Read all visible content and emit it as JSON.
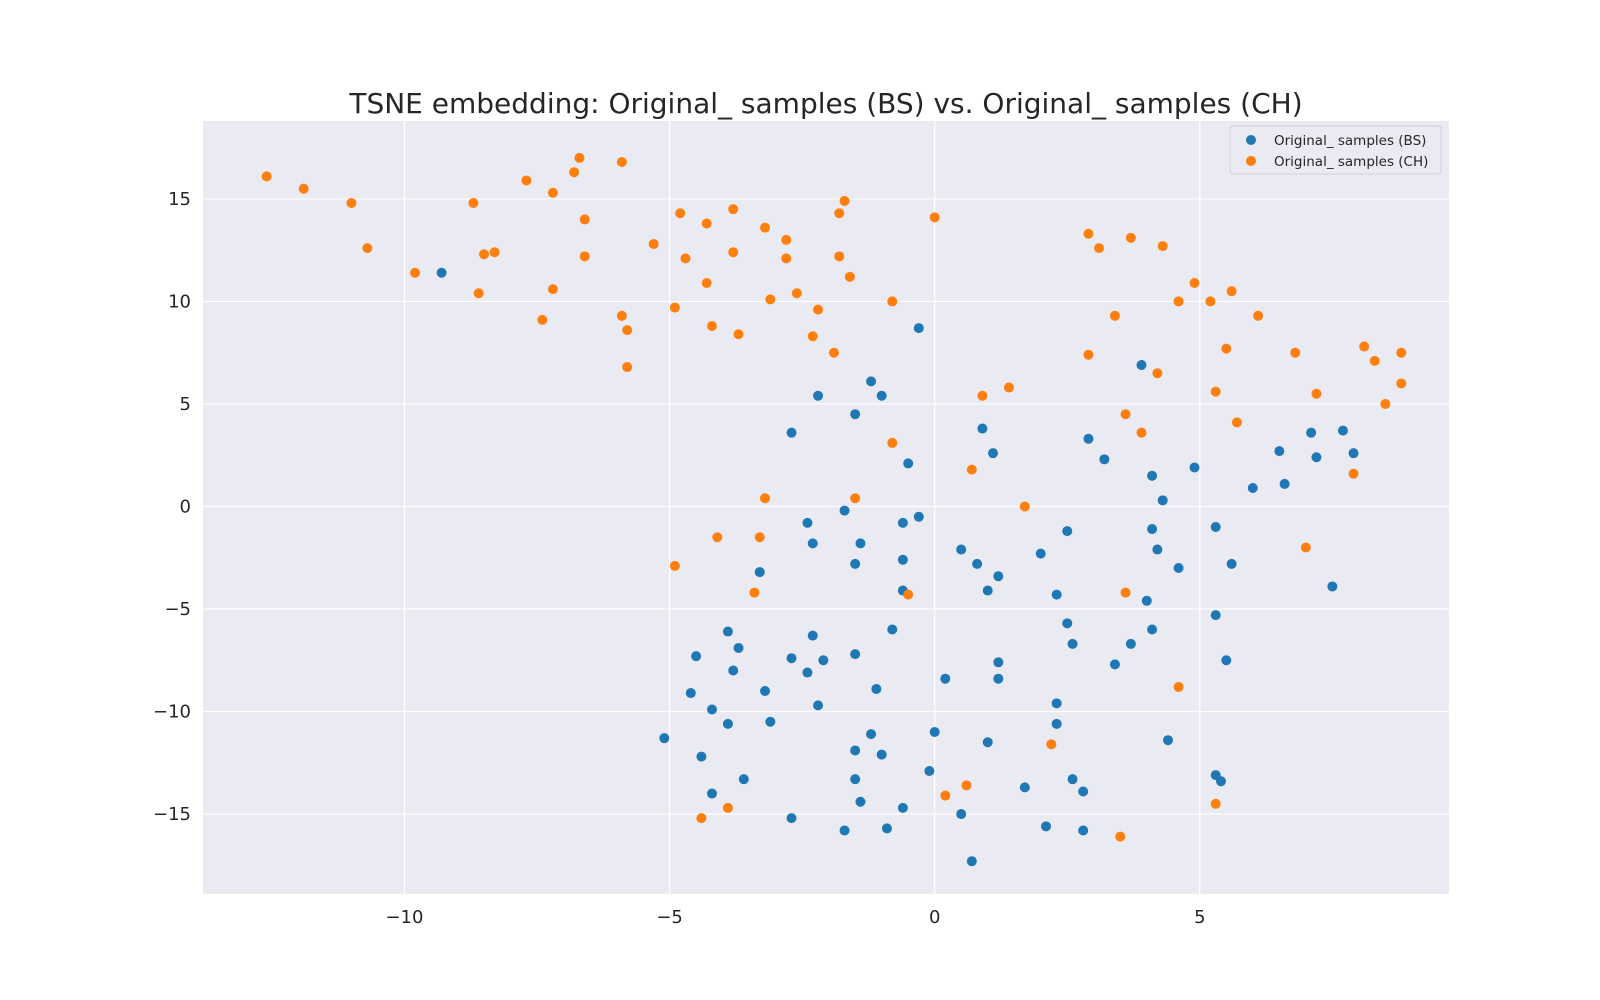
{
  "chart_data": {
    "type": "scatter",
    "title": "TSNE embedding: Original_ samples (BS) vs. Original_ samples (CH)",
    "xlabel": "",
    "ylabel": "",
    "xlim": [
      -13.8,
      9.7
    ],
    "ylim": [
      -18.9,
      18.8
    ],
    "xticks": [
      -10,
      -5,
      0,
      5
    ],
    "yticks": [
      -15,
      -10,
      -5,
      0,
      5,
      10,
      15
    ],
    "xtick_labels": [
      "−10",
      "−5",
      "0",
      "5"
    ],
    "ytick_labels": [
      "−15",
      "−10",
      "−5",
      "0",
      "5",
      "10",
      "15"
    ],
    "grid": true,
    "legend_position": "top-right",
    "series": [
      {
        "name": "Original_ samples (BS)",
        "color": "#1f77b4",
        "points": [
          [
            -9.3,
            11.4
          ],
          [
            -0.3,
            8.7
          ],
          [
            3.9,
            6.9
          ],
          [
            -1.2,
            6.1
          ],
          [
            -2.2,
            5.4
          ],
          [
            -1.0,
            5.4
          ],
          [
            -1.5,
            4.5
          ],
          [
            -2.7,
            3.6
          ],
          [
            0.9,
            3.8
          ],
          [
            1.1,
            2.6
          ],
          [
            -0.5,
            2.1
          ],
          [
            2.9,
            3.3
          ],
          [
            3.2,
            2.3
          ],
          [
            4.1,
            1.5
          ],
          [
            4.9,
            1.9
          ],
          [
            6.5,
            2.7
          ],
          [
            7.1,
            3.6
          ],
          [
            7.7,
            3.7
          ],
          [
            7.9,
            2.6
          ],
          [
            7.2,
            2.4
          ],
          [
            6.0,
            0.9
          ],
          [
            6.6,
            1.1
          ],
          [
            4.3,
            0.3
          ],
          [
            -1.7,
            -0.2
          ],
          [
            -2.4,
            -0.8
          ],
          [
            -0.6,
            -0.8
          ],
          [
            -0.3,
            -0.5
          ],
          [
            -2.3,
            -1.8
          ],
          [
            -1.4,
            -1.8
          ],
          [
            -1.5,
            -2.8
          ],
          [
            -0.6,
            -2.6
          ],
          [
            0.5,
            -2.1
          ],
          [
            0.8,
            -2.8
          ],
          [
            1.2,
            -3.4
          ],
          [
            2.0,
            -2.3
          ],
          [
            2.5,
            -1.2
          ],
          [
            4.1,
            -1.1
          ],
          [
            4.2,
            -2.1
          ],
          [
            4.6,
            -3.0
          ],
          [
            5.3,
            -1.0
          ],
          [
            5.6,
            -2.8
          ],
          [
            -3.3,
            -3.2
          ],
          [
            -0.6,
            -4.1
          ],
          [
            1.0,
            -4.1
          ],
          [
            2.3,
            -4.3
          ],
          [
            4.0,
            -4.6
          ],
          [
            7.5,
            -3.9
          ],
          [
            5.3,
            -5.3
          ],
          [
            -3.9,
            -6.1
          ],
          [
            -2.3,
            -6.3
          ],
          [
            -0.8,
            -6.0
          ],
          [
            2.5,
            -5.7
          ],
          [
            4.1,
            -6.0
          ],
          [
            -4.5,
            -7.3
          ],
          [
            -3.7,
            -6.9
          ],
          [
            -2.7,
            -7.4
          ],
          [
            -1.5,
            -7.2
          ],
          [
            -2.1,
            -7.5
          ],
          [
            -3.8,
            -8.0
          ],
          [
            -2.4,
            -8.1
          ],
          [
            1.2,
            -7.6
          ],
          [
            2.6,
            -6.7
          ],
          [
            3.7,
            -6.7
          ],
          [
            3.4,
            -7.7
          ],
          [
            5.5,
            -7.5
          ],
          [
            -4.6,
            -9.1
          ],
          [
            -3.2,
            -9.0
          ],
          [
            -1.1,
            -8.9
          ],
          [
            0.2,
            -8.4
          ],
          [
            1.2,
            -8.4
          ],
          [
            -4.2,
            -9.9
          ],
          [
            -2.2,
            -9.7
          ],
          [
            2.3,
            -9.6
          ],
          [
            -3.9,
            -10.6
          ],
          [
            -3.1,
            -10.5
          ],
          [
            2.3,
            -10.6
          ],
          [
            -5.1,
            -11.3
          ],
          [
            -1.2,
            -11.1
          ],
          [
            0.0,
            -11.0
          ],
          [
            1.0,
            -11.5
          ],
          [
            4.4,
            -11.4
          ],
          [
            -4.4,
            -12.2
          ],
          [
            -1.5,
            -11.9
          ],
          [
            -1.0,
            -12.1
          ],
          [
            -0.1,
            -12.9
          ],
          [
            -3.6,
            -13.3
          ],
          [
            -1.5,
            -13.3
          ],
          [
            2.6,
            -13.3
          ],
          [
            5.3,
            -13.1
          ],
          [
            5.4,
            -13.4
          ],
          [
            -4.2,
            -14.0
          ],
          [
            -1.4,
            -14.4
          ],
          [
            -0.6,
            -14.7
          ],
          [
            1.7,
            -13.7
          ],
          [
            2.8,
            -13.9
          ],
          [
            -2.7,
            -15.2
          ],
          [
            0.5,
            -15.0
          ],
          [
            -1.7,
            -15.8
          ],
          [
            -0.9,
            -15.7
          ],
          [
            2.1,
            -15.6
          ],
          [
            2.8,
            -15.8
          ],
          [
            0.7,
            -17.3
          ]
        ]
      },
      {
        "name": "Original_ samples (CH)",
        "color": "#ff7f0e",
        "points": [
          [
            -12.6,
            16.1
          ],
          [
            -11.9,
            15.5
          ],
          [
            -11.0,
            14.8
          ],
          [
            -10.7,
            12.6
          ],
          [
            -9.8,
            11.4
          ],
          [
            -8.7,
            14.8
          ],
          [
            -8.5,
            12.3
          ],
          [
            -8.3,
            12.4
          ],
          [
            -8.6,
            10.4
          ],
          [
            -7.7,
            15.9
          ],
          [
            -7.2,
            15.3
          ],
          [
            -6.8,
            16.3
          ],
          [
            -6.7,
            17.0
          ],
          [
            -5.9,
            16.8
          ],
          [
            -6.6,
            14.0
          ],
          [
            -6.6,
            12.2
          ],
          [
            -7.2,
            10.6
          ],
          [
            -7.4,
            9.1
          ],
          [
            -5.9,
            9.3
          ],
          [
            -5.8,
            8.6
          ],
          [
            -5.8,
            6.8
          ],
          [
            -5.3,
            12.8
          ],
          [
            -4.8,
            14.3
          ],
          [
            -4.7,
            12.1
          ],
          [
            -4.9,
            9.7
          ],
          [
            -4.3,
            13.8
          ],
          [
            -3.8,
            14.5
          ],
          [
            -3.8,
            12.4
          ],
          [
            -4.3,
            10.9
          ],
          [
            -4.2,
            8.8
          ],
          [
            -3.7,
            8.4
          ],
          [
            -3.2,
            13.6
          ],
          [
            -2.8,
            13.0
          ],
          [
            -2.8,
            12.1
          ],
          [
            -3.1,
            10.1
          ],
          [
            -2.6,
            10.4
          ],
          [
            -2.2,
            9.6
          ],
          [
            -2.3,
            8.3
          ],
          [
            -1.9,
            7.5
          ],
          [
            -1.8,
            14.3
          ],
          [
            -1.7,
            14.9
          ],
          [
            -1.8,
            12.2
          ],
          [
            -1.6,
            11.2
          ],
          [
            -0.8,
            10.0
          ],
          [
            0.0,
            14.1
          ],
          [
            2.9,
            13.3
          ],
          [
            3.1,
            12.6
          ],
          [
            3.7,
            13.1
          ],
          [
            4.3,
            12.7
          ],
          [
            3.4,
            9.3
          ],
          [
            4.9,
            10.9
          ],
          [
            4.6,
            10.0
          ],
          [
            5.2,
            10.0
          ],
          [
            5.6,
            10.5
          ],
          [
            6.1,
            9.3
          ],
          [
            2.9,
            7.4
          ],
          [
            4.2,
            6.5
          ],
          [
            5.5,
            7.7
          ],
          [
            6.8,
            7.5
          ],
          [
            8.1,
            7.8
          ],
          [
            8.3,
            7.1
          ],
          [
            8.8,
            7.5
          ],
          [
            1.4,
            5.8
          ],
          [
            0.9,
            5.4
          ],
          [
            5.3,
            5.6
          ],
          [
            7.2,
            5.5
          ],
          [
            8.8,
            6.0
          ],
          [
            8.5,
            5.0
          ],
          [
            3.6,
            4.5
          ],
          [
            3.9,
            3.6
          ],
          [
            5.7,
            4.1
          ],
          [
            -0.8,
            3.1
          ],
          [
            0.7,
            1.8
          ],
          [
            7.9,
            1.6
          ],
          [
            -3.2,
            0.4
          ],
          [
            -1.5,
            0.4
          ],
          [
            1.7,
            0.0
          ],
          [
            -4.1,
            -1.5
          ],
          [
            -3.3,
            -1.5
          ],
          [
            7.0,
            -2.0
          ],
          [
            -4.9,
            -2.9
          ],
          [
            -3.4,
            -4.2
          ],
          [
            -0.5,
            -4.3
          ],
          [
            3.6,
            -4.2
          ],
          [
            4.6,
            -8.8
          ],
          [
            2.2,
            -11.6
          ],
          [
            0.6,
            -13.6
          ],
          [
            0.2,
            -14.1
          ],
          [
            5.3,
            -14.5
          ],
          [
            -4.4,
            -15.2
          ],
          [
            -3.9,
            -14.7
          ],
          [
            3.5,
            -16.1
          ]
        ]
      }
    ]
  }
}
